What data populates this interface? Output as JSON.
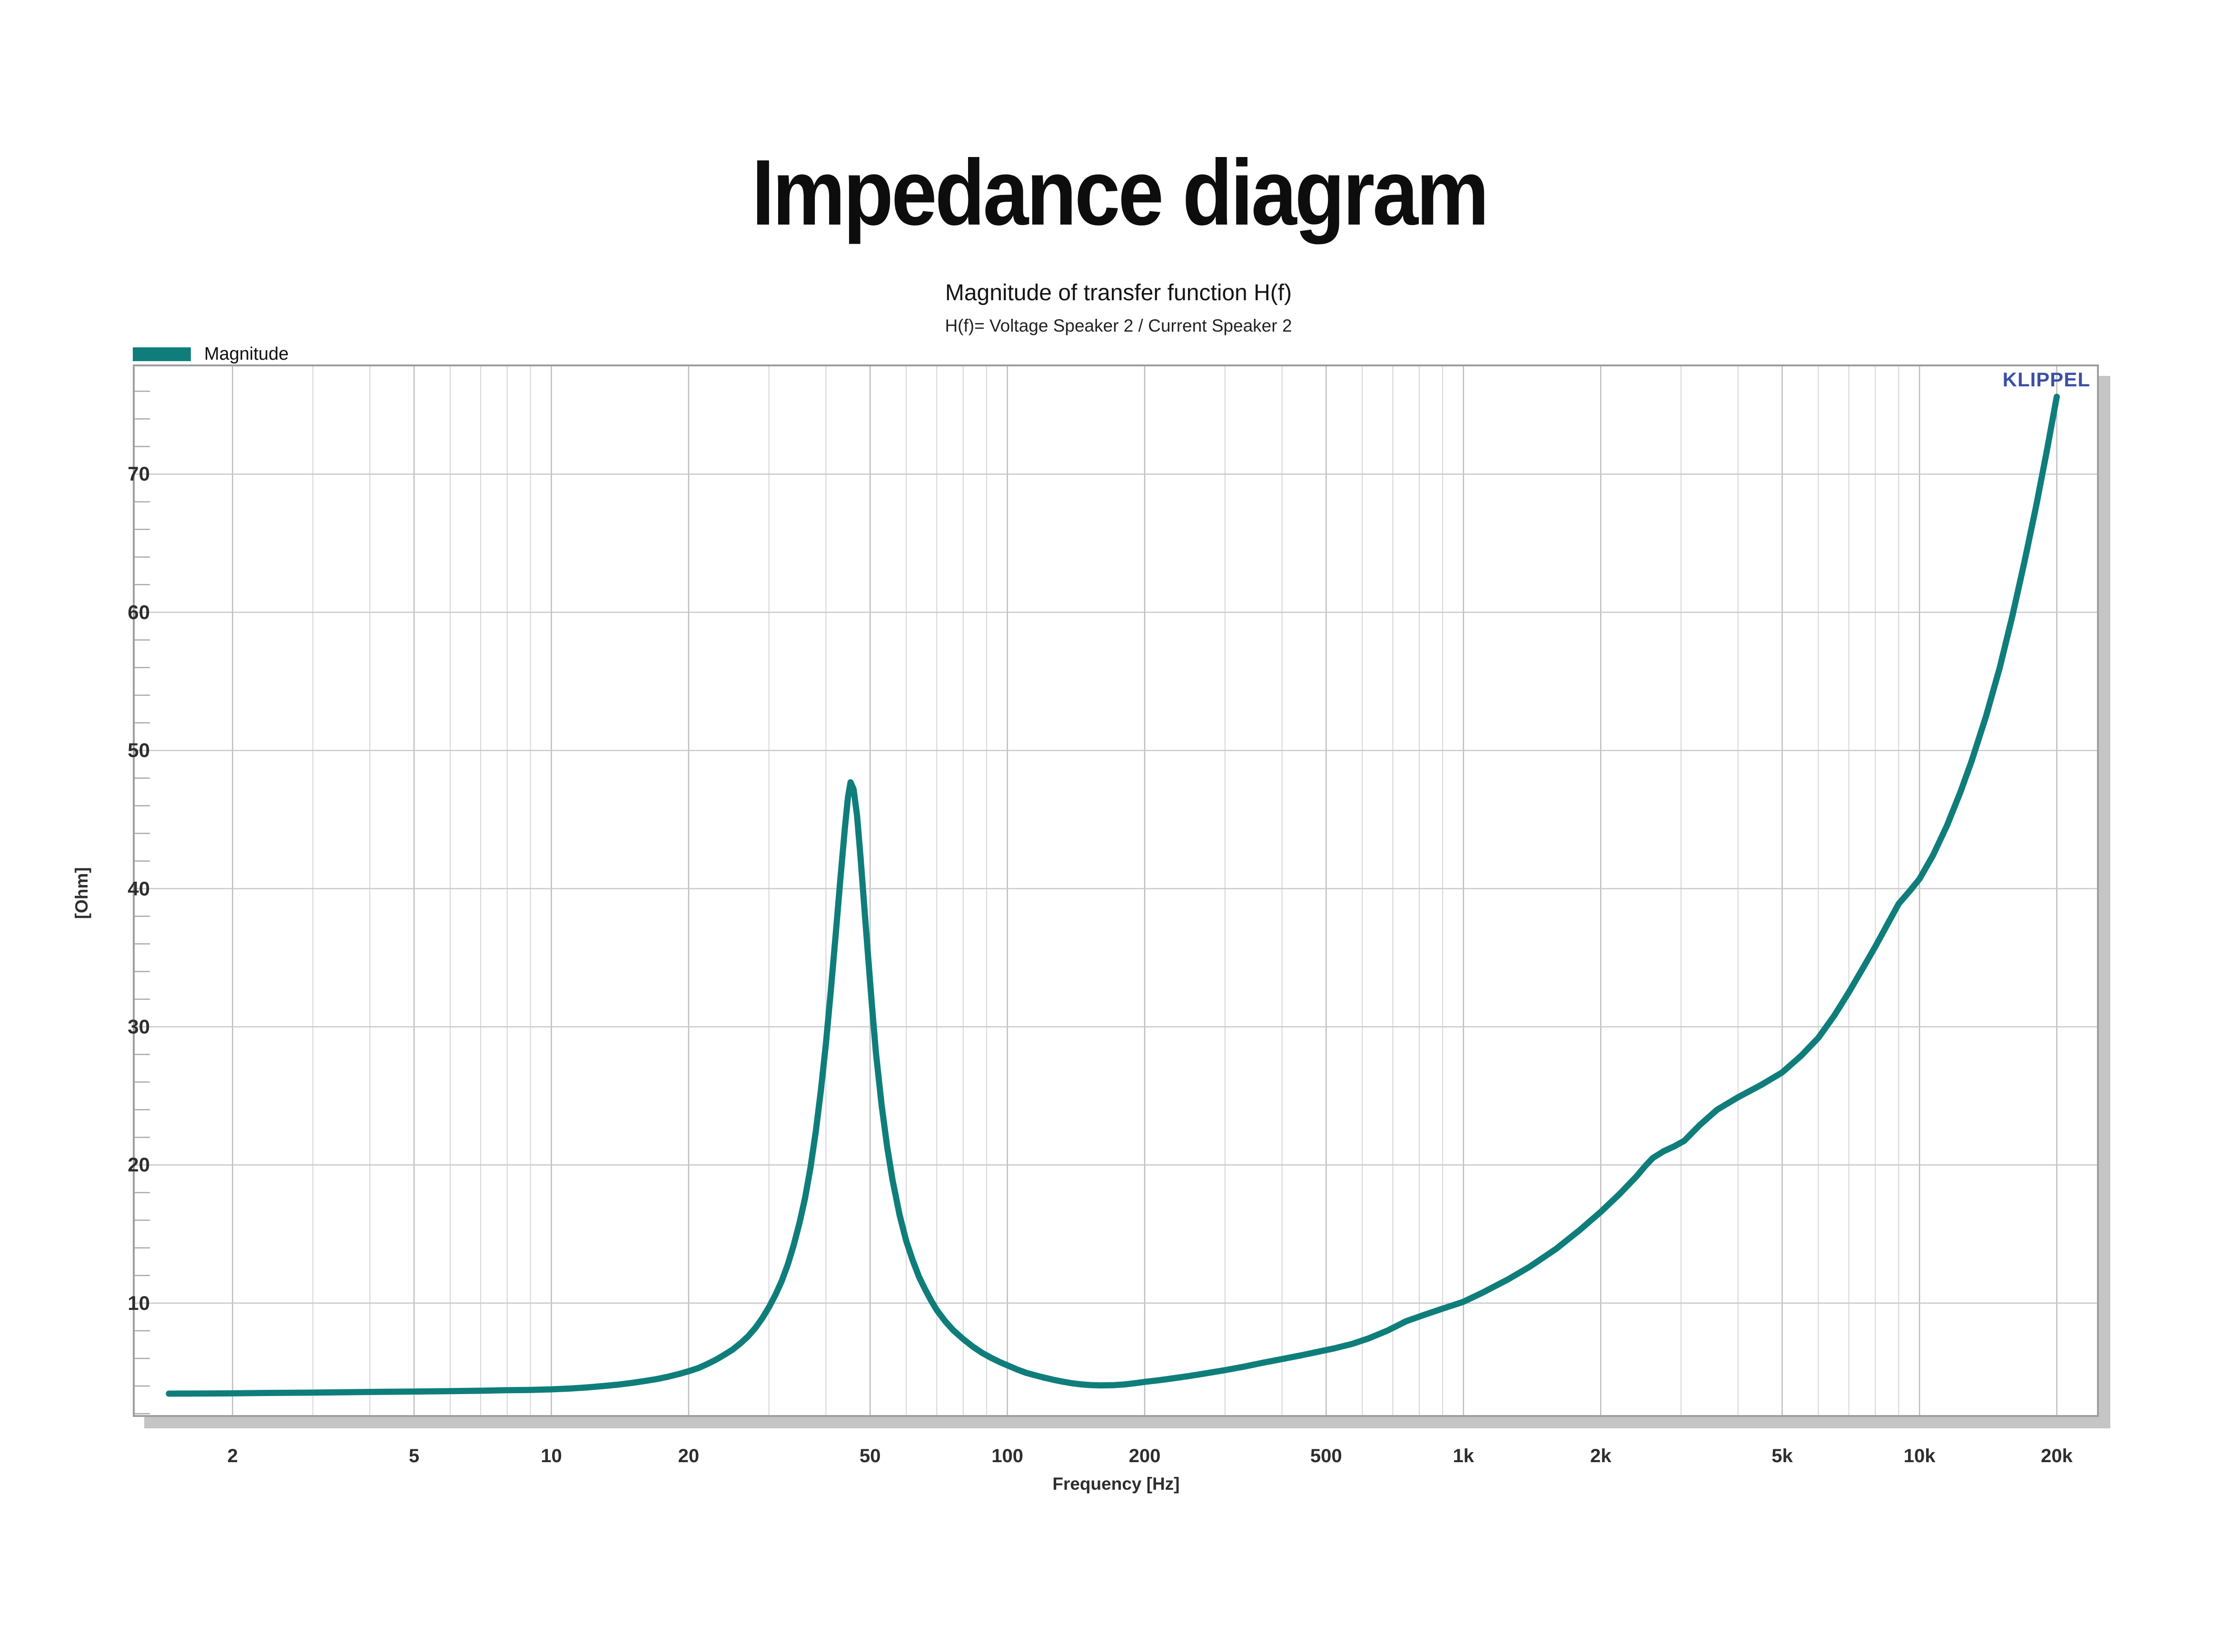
{
  "page_title": "Impedance diagram",
  "chart_data": {
    "type": "line",
    "title": "Magnitude of transfer function H(f)",
    "subtitle": "H(f)= Voltage Speaker 2 / Current Speaker 2",
    "xlabel": "Frequency [Hz]",
    "ylabel": "[Ohm]",
    "watermark": "KLIPPEL",
    "watermark_color": "#3b50a5",
    "xscale": "log",
    "grid": true,
    "xlim": [
      1.22,
      24500
    ],
    "ylim": [
      1.9,
      77.8
    ],
    "xticks": [
      {
        "v": 2,
        "label": "2"
      },
      {
        "v": 5,
        "label": "5"
      },
      {
        "v": 10,
        "label": "10"
      },
      {
        "v": 20,
        "label": "20"
      },
      {
        "v": 50,
        "label": "50"
      },
      {
        "v": 100,
        "label": "100"
      },
      {
        "v": 200,
        "label": "200"
      },
      {
        "v": 500,
        "label": "500"
      },
      {
        "v": 1000,
        "label": "1k"
      },
      {
        "v": 2000,
        "label": "2k"
      },
      {
        "v": 5000,
        "label": "5k"
      },
      {
        "v": 10000,
        "label": "10k"
      },
      {
        "v": 20000,
        "label": "20k"
      }
    ],
    "x_minor": [
      3,
      4,
      6,
      7,
      8,
      9,
      30,
      40,
      60,
      70,
      80,
      90,
      300,
      400,
      600,
      700,
      800,
      900,
      3000,
      4000,
      6000,
      7000,
      8000,
      9000
    ],
    "yticks": [
      10,
      20,
      30,
      40,
      50,
      60,
      70
    ],
    "y_minor_step": 2,
    "colors": {
      "curve": "#0f7e7b",
      "grid_major_x": "#bdbdbd",
      "grid_minor_x": "#d6d6d6",
      "grid_major_y": "#c9c9c9",
      "frame": "#9e9e9e",
      "shadow": "#c5c5c5"
    },
    "legend": [
      {
        "label": "Magnitude",
        "color": "#0f7e7b"
      }
    ],
    "legend_position": "top-left",
    "series": [
      {
        "name": "Magnitude",
        "color": "#0f7e7b",
        "points": [
          [
            1.45,
            3.45
          ],
          [
            1.7,
            3.46
          ],
          [
            2,
            3.47
          ],
          [
            2.4,
            3.5
          ],
          [
            2.9,
            3.52
          ],
          [
            3.5,
            3.55
          ],
          [
            4.2,
            3.58
          ],
          [
            5,
            3.6
          ],
          [
            6,
            3.63
          ],
          [
            7,
            3.66
          ],
          [
            8,
            3.7
          ],
          [
            9,
            3.72
          ],
          [
            10,
            3.76
          ],
          [
            11,
            3.82
          ],
          [
            12,
            3.9
          ],
          [
            13,
            4.0
          ],
          [
            14,
            4.1
          ],
          [
            15,
            4.22
          ],
          [
            16,
            4.36
          ],
          [
            17,
            4.5
          ],
          [
            18,
            4.67
          ],
          [
            19,
            4.86
          ],
          [
            20,
            5.07
          ],
          [
            21,
            5.3
          ],
          [
            22,
            5.6
          ],
          [
            23,
            5.92
          ],
          [
            24,
            6.28
          ],
          [
            25,
            6.65
          ],
          [
            26,
            7.1
          ],
          [
            27,
            7.6
          ],
          [
            28,
            8.2
          ],
          [
            29,
            8.9
          ],
          [
            30,
            9.7
          ],
          [
            31,
            10.6
          ],
          [
            32,
            11.6
          ],
          [
            33,
            12.8
          ],
          [
            34,
            14.2
          ],
          [
            35,
            15.8
          ],
          [
            36,
            17.6
          ],
          [
            37,
            19.8
          ],
          [
            38,
            22.4
          ],
          [
            39,
            25.4
          ],
          [
            40,
            28.8
          ],
          [
            41,
            32.6
          ],
          [
            42,
            36.6
          ],
          [
            43,
            40.6
          ],
          [
            44,
            44.3
          ],
          [
            44.7,
            46.6
          ],
          [
            45.3,
            47.7
          ],
          [
            46,
            47.2
          ],
          [
            46.8,
            45.3
          ],
          [
            47.6,
            42.4
          ],
          [
            48.5,
            38.9
          ],
          [
            49.5,
            35.1
          ],
          [
            50.5,
            31.4
          ],
          [
            51.5,
            28.1
          ],
          [
            53,
            24.3
          ],
          [
            54.5,
            21.3
          ],
          [
            56,
            18.9
          ],
          [
            58,
            16.4
          ],
          [
            60,
            14.5
          ],
          [
            62,
            13.1
          ],
          [
            64,
            11.9
          ],
          [
            66,
            11.0
          ],
          [
            68,
            10.2
          ],
          [
            70,
            9.5
          ],
          [
            73,
            8.7
          ],
          [
            76,
            8.05
          ],
          [
            80,
            7.4
          ],
          [
            84,
            6.85
          ],
          [
            88,
            6.4
          ],
          [
            92,
            6.05
          ],
          [
            96,
            5.75
          ],
          [
            100,
            5.5
          ],
          [
            105,
            5.2
          ],
          [
            110,
            4.95
          ],
          [
            115,
            4.78
          ],
          [
            120,
            4.62
          ],
          [
            126,
            4.46
          ],
          [
            132,
            4.32
          ],
          [
            138,
            4.21
          ],
          [
            145,
            4.12
          ],
          [
            152,
            4.07
          ],
          [
            160,
            4.05
          ],
          [
            170,
            4.06
          ],
          [
            180,
            4.11
          ],
          [
            190,
            4.2
          ],
          [
            200,
            4.3
          ],
          [
            215,
            4.42
          ],
          [
            230,
            4.55
          ],
          [
            250,
            4.72
          ],
          [
            270,
            4.9
          ],
          [
            300,
            5.15
          ],
          [
            330,
            5.4
          ],
          [
            360,
            5.66
          ],
          [
            400,
            5.95
          ],
          [
            440,
            6.22
          ],
          [
            480,
            6.48
          ],
          [
            520,
            6.72
          ],
          [
            570,
            7.05
          ],
          [
            620,
            7.45
          ],
          [
            680,
            8.0
          ],
          [
            750,
            8.7
          ],
          [
            820,
            9.15
          ],
          [
            900,
            9.6
          ],
          [
            1000,
            10.1
          ],
          [
            1100,
            10.75
          ],
          [
            1250,
            11.7
          ],
          [
            1400,
            12.65
          ],
          [
            1600,
            13.95
          ],
          [
            1800,
            15.3
          ],
          [
            2000,
            16.6
          ],
          [
            2200,
            17.9
          ],
          [
            2400,
            19.2
          ],
          [
            2500,
            19.9
          ],
          [
            2600,
            20.5
          ],
          [
            2750,
            21.0
          ],
          [
            2900,
            21.35
          ],
          [
            3050,
            21.75
          ],
          [
            3300,
            22.9
          ],
          [
            3600,
            24.0
          ],
          [
            4000,
            24.9
          ],
          [
            4500,
            25.8
          ],
          [
            5000,
            26.7
          ],
          [
            5500,
            27.9
          ],
          [
            6000,
            29.2
          ],
          [
            6500,
            30.8
          ],
          [
            7000,
            32.5
          ],
          [
            7500,
            34.2
          ],
          [
            8000,
            35.8
          ],
          [
            8500,
            37.4
          ],
          [
            9000,
            38.9
          ],
          [
            9500,
            39.8
          ],
          [
            10000,
            40.7
          ],
          [
            10700,
            42.4
          ],
          [
            11500,
            44.6
          ],
          [
            12300,
            47.0
          ],
          [
            13000,
            49.2
          ],
          [
            14000,
            52.5
          ],
          [
            15000,
            56.0
          ],
          [
            16000,
            59.8
          ],
          [
            17000,
            63.7
          ],
          [
            18000,
            67.6
          ],
          [
            19000,
            71.6
          ],
          [
            20000,
            75.6
          ]
        ]
      }
    ]
  }
}
